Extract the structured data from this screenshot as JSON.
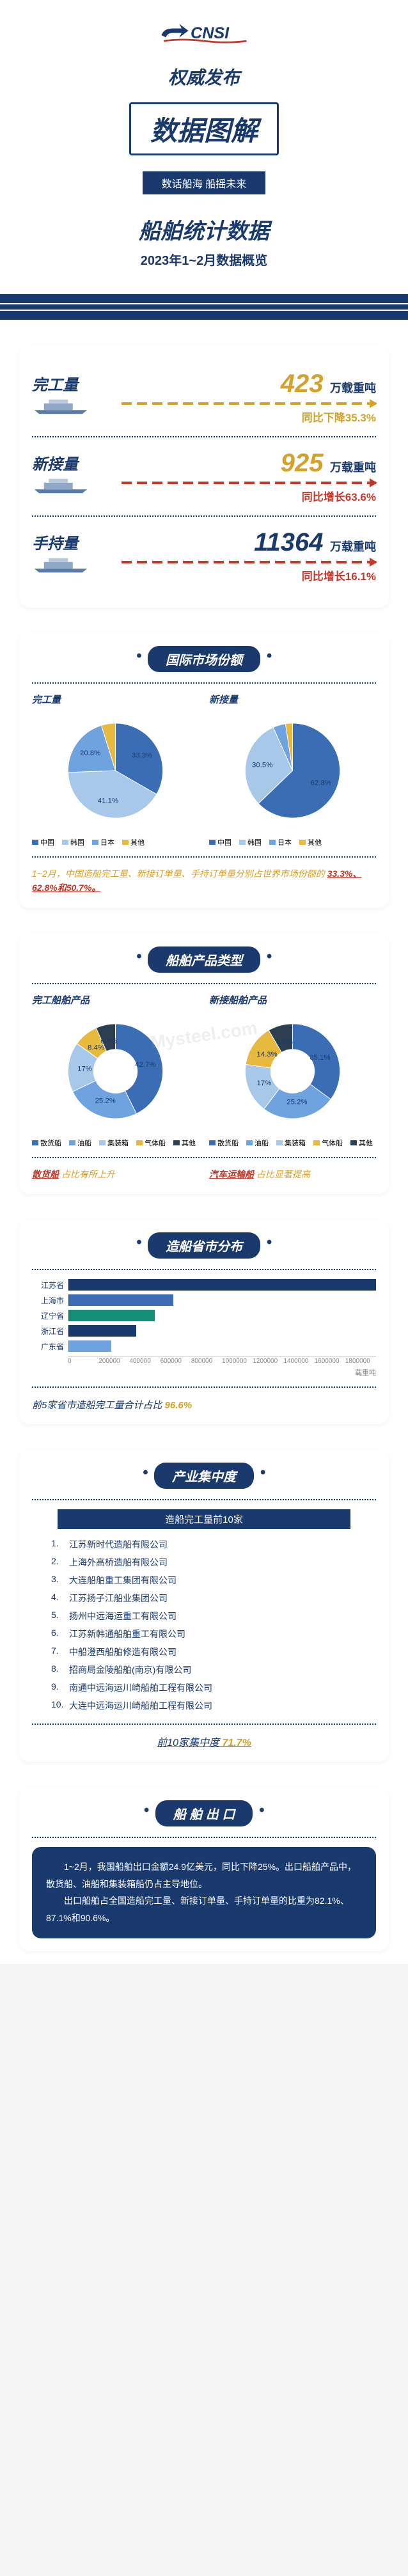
{
  "header": {
    "logo_text": "CNSI",
    "sub1": "权威发布",
    "title": "数据图解",
    "slogan": "数话船海 船摇未来",
    "sub2": "船舶统计数据",
    "sub3": "2023年1~2月数据概览"
  },
  "colors": {
    "primary": "#1a3a6e",
    "accent_gold": "#d4a12a",
    "accent_red": "#c0392b",
    "blue1": "#3b6db5",
    "blue2": "#6fa3e0",
    "blue3": "#a8c8ea",
    "yellow": "#e8b93f",
    "dark": "#2c3e50"
  },
  "metrics": [
    {
      "label": "完工量",
      "value": "423",
      "unit": "万载重吨",
      "change": "同比下降35.3%",
      "color": "#d4a12a"
    },
    {
      "label": "新接量",
      "value": "925",
      "unit": "万载重吨",
      "change": "同比增长63.6%",
      "color": "#c0392b",
      "valColor": "#d4a12a",
      "changeColor": "#c0392b"
    },
    {
      "label": "手持量",
      "value": "11364",
      "unit": "万载重吨",
      "change": "同比增长16.1%",
      "color": "#c0392b",
      "valColor": "#1a3a6e",
      "changeColor": "#c0392b"
    }
  ],
  "marketShare": {
    "title": "国际市场份额",
    "left": {
      "title": "完工量",
      "slices": [
        {
          "label": "中国",
          "value": 33.3,
          "color": "#3b6db5"
        },
        {
          "label": "韩国",
          "value": 41.1,
          "color": "#a8c8ea"
        },
        {
          "label": "日本",
          "value": 20.8,
          "color": "#6fa3e0"
        },
        {
          "label": "其他",
          "value": 4.8,
          "color": "#e8b93f"
        }
      ]
    },
    "right": {
      "title": "新接量",
      "slices": [
        {
          "label": "中国",
          "value": 62.8,
          "color": "#3b6db5"
        },
        {
          "label": "韩国",
          "value": 30.5,
          "color": "#a8c8ea"
        },
        {
          "label": "日本",
          "value": 4.3,
          "color": "#6fa3e0"
        },
        {
          "label": "其他",
          "value": 2.4,
          "color": "#e8b93f"
        }
      ]
    },
    "legend": [
      "中国",
      "韩国",
      "日本",
      "其他"
    ],
    "note_pre": "1~2月，中国造船完工量、新接订单量、手持订单量分别占世界市场份额的 ",
    "note_val": "33.3%、62.8%和50.7%。"
  },
  "productType": {
    "title": "船舶产品类型",
    "left": {
      "title": "完工船舶产品",
      "slices": [
        {
          "label": "散货船",
          "value": 42.7,
          "color": "#3b6db5"
        },
        {
          "label": "油船",
          "value": 25.2,
          "color": "#6fa3e0"
        },
        {
          "label": "集装箱",
          "value": 17,
          "color": "#a8c8ea"
        },
        {
          "label": "气体船",
          "value": 8.4,
          "color": "#e8b93f"
        },
        {
          "label": "其他",
          "value": 6.7,
          "color": "#2c3e50"
        }
      ]
    },
    "right": {
      "title": "新接船舶产品",
      "slices": [
        {
          "label": "散货船",
          "value": 35.1,
          "color": "#3b6db5"
        },
        {
          "label": "油船",
          "value": 25.2,
          "color": "#6fa3e0"
        },
        {
          "label": "集装箱",
          "value": 17,
          "color": "#a8c8ea"
        },
        {
          "label": "气体船",
          "value": 14.3,
          "color": "#e8b93f"
        },
        {
          "label": "其他",
          "value": 8.4,
          "color": "#2c3e50"
        }
      ]
    },
    "legend": [
      "散货船",
      "油船",
      "集装箱",
      "气体船",
      "其他"
    ],
    "foot_left_hl": "散货船",
    "foot_left_rest": " 占比有所上升",
    "foot_right_hl": "汽车运输船",
    "foot_right_rest": " 占比显著提高"
  },
  "province": {
    "title": "造船省市分布",
    "bars": [
      {
        "label": "江苏省",
        "value": 100,
        "color": "#1a3a6e"
      },
      {
        "label": "上海市",
        "value": 34,
        "color": "#3b6db5"
      },
      {
        "label": "辽宁省",
        "value": 28,
        "color": "#148f77"
      },
      {
        "label": "浙江省",
        "value": 22,
        "color": "#1a3a6e"
      },
      {
        "label": "广东省",
        "value": 14,
        "color": "#6fa3e0"
      }
    ],
    "ticks": [
      "0",
      "200000",
      "400000",
      "600000",
      "800000",
      "1000000",
      "1200000",
      "1400000",
      "1600000",
      "1800000"
    ],
    "axis_label": "载重吨",
    "note_pre": "前5家省市造船完工量合计占比 ",
    "note_val": "96.6%"
  },
  "concentration": {
    "title": "产业集中度",
    "sub": "造船完工量前10家",
    "list": [
      "江苏新时代造船有限公司",
      "上海外高桥造船有限公司",
      "大连船舶重工集团有限公司",
      "江苏扬子江船业集团公司",
      "扬州中远海运重工有限公司",
      "江苏新韩通船舶重工有限公司",
      "中船澄西船舶修造有限公司",
      "招商局金陵船舶(南京)有限公司",
      "南通中远海运川崎船舶工程有限公司",
      "大连中远海运川崎船舶工程有限公司"
    ],
    "foot_pre": "前10家集中度 ",
    "foot_val": "71.7%"
  },
  "export": {
    "title": "船 舶 出 口",
    "p1": "1~2月，我国船舶出口金额24.9亿美元，同比下降25%。出口船舶产品中，散货船、油船和集装箱船仍占主导地位。",
    "p2": "出口船舶占全国造船完工量、新接订单量、手持订单量的比重为82.1%、87.1%和90.6%。"
  }
}
